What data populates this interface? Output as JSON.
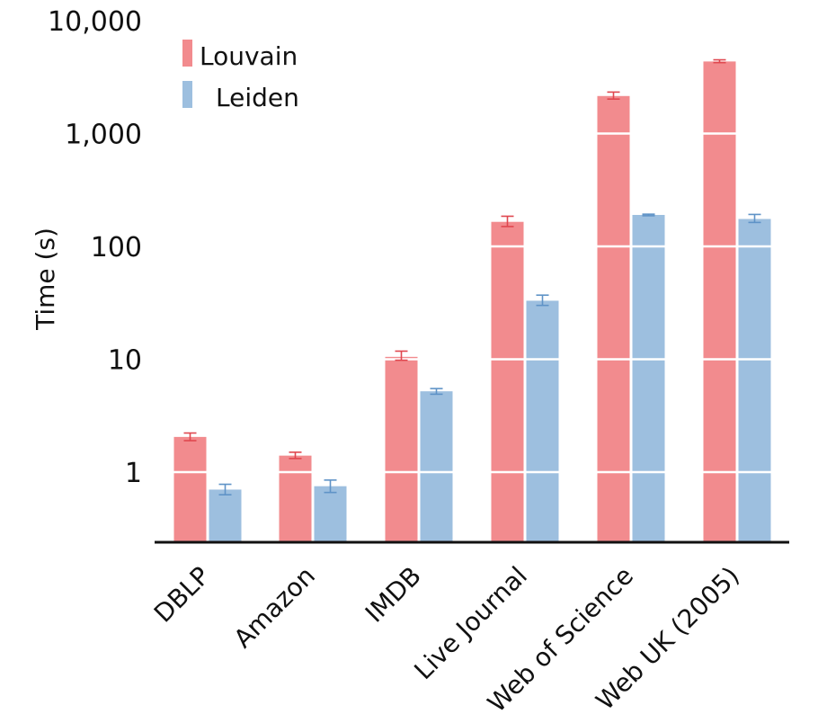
{
  "chart_data": {
    "type": "bar",
    "title": "",
    "xlabel": "",
    "ylabel": "Time (s)",
    "yscale": "log",
    "ylim": [
      0.25,
      10000
    ],
    "yticks": [
      1,
      10,
      100,
      1000,
      10000
    ],
    "ytick_labels": [
      "1",
      "10",
      "100",
      "1,000",
      "10,000"
    ],
    "grid": "horizontal white lines through bars",
    "legend_position": "top-left",
    "categories": [
      "DBLP",
      "Amazon",
      "IMDB",
      "Live Journal",
      "Web of Science",
      "Web UK (2005)"
    ],
    "series": [
      {
        "name": "Louvain",
        "color": "#f28b8e",
        "error_color": "#e0474f",
        "values": [
          2.05,
          1.4,
          10.5,
          165,
          2150,
          4350
        ],
        "err_low": [
          1.9,
          1.32,
          9.8,
          150,
          2020,
          4250
        ],
        "err_high": [
          2.22,
          1.5,
          11.8,
          185,
          2330,
          4500
        ]
      },
      {
        "name": "Leiden",
        "color": "#9dbfdf",
        "error_color": "#5f93c7",
        "values": [
          0.7,
          0.75,
          5.2,
          33,
          190,
          175
        ],
        "err_low": [
          0.63,
          0.66,
          4.9,
          30,
          187,
          163
        ],
        "err_high": [
          0.78,
          0.85,
          5.5,
          37,
          193,
          192
        ]
      }
    ]
  }
}
